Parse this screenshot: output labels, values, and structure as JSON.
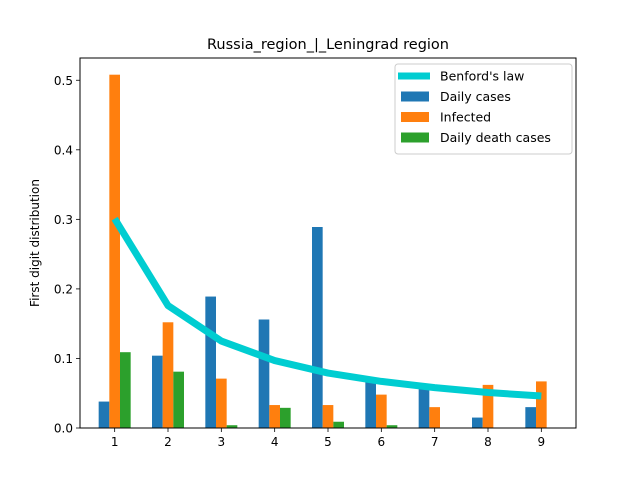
{
  "chart_data": {
    "type": "bar",
    "title": "Russia_region_|_Leningrad region",
    "xlabel": "",
    "ylabel": "First digit distribution",
    "categories": [
      "1",
      "2",
      "3",
      "4",
      "5",
      "6",
      "7",
      "8",
      "9"
    ],
    "x": [
      1,
      2,
      3,
      4,
      5,
      6,
      7,
      8,
      9
    ],
    "xlim": [
      0.35,
      9.65
    ],
    "ylim": [
      0,
      0.532
    ],
    "yticks": [
      "0.0",
      "0.1",
      "0.2",
      "0.3",
      "0.4",
      "0.5"
    ],
    "grid": false,
    "legend_position": "top-right",
    "series": [
      {
        "name": "Benford's law",
        "kind": "line",
        "color": "#00cdd1",
        "values": [
          0.301,
          0.176,
          0.125,
          0.097,
          0.079,
          0.067,
          0.058,
          0.051,
          0.046
        ]
      },
      {
        "name": "Daily cases",
        "kind": "bar",
        "color": "#1f77b4",
        "values": [
          0.038,
          0.104,
          0.189,
          0.156,
          0.289,
          0.067,
          0.059,
          0.015,
          0.03
        ]
      },
      {
        "name": "Infected",
        "kind": "bar",
        "color": "#ff7f0e",
        "values": [
          0.508,
          0.152,
          0.071,
          0.033,
          0.033,
          0.048,
          0.03,
          0.062,
          0.067
        ]
      },
      {
        "name": "Daily death cases",
        "kind": "bar",
        "color": "#2ca02c",
        "values": [
          0.109,
          0.081,
          0.004,
          0.029,
          0.009,
          0.004,
          0.0,
          0.0,
          0.0
        ]
      }
    ]
  }
}
